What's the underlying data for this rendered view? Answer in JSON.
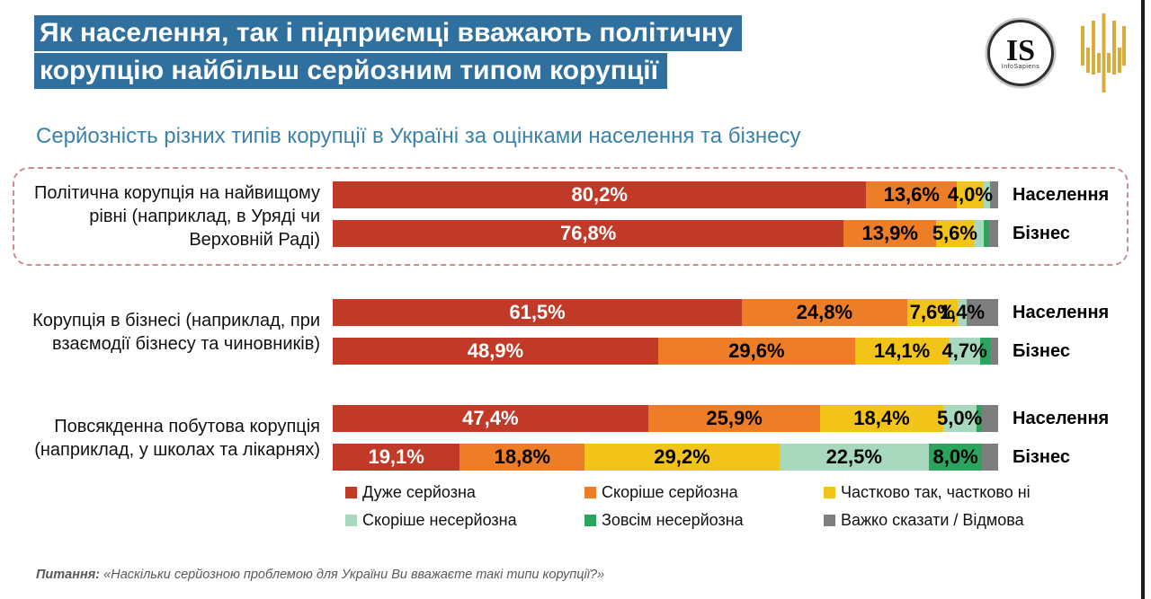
{
  "header": {
    "title_lines": [
      "Як населення, так і підприємці вважають політичну",
      "корупцію найбільш серйозним типом корупції"
    ],
    "accent_color": "#2F709E",
    "logo_is": {
      "text": "IS",
      "subtext": "InfoSapiens"
    }
  },
  "footer": {
    "prefix": "Питання:",
    "text": "«Наскільки серйозною проблемою для України Ви вважаєте такі типи корупції?»"
  },
  "chart_data": {
    "type": "bar",
    "stacked": true,
    "orientation": "horizontal",
    "unit": "%",
    "title": "Серйозність різних типів корупції в Україні за оцінками населення та бізнесу",
    "xlim": [
      0,
      100
    ],
    "legend_position": "bottom",
    "legend": [
      {
        "key": "very-serious",
        "label": "Дуже серйозна",
        "color": "#C13A27"
      },
      {
        "key": "rather-serious",
        "label": "Скоріше серйозна",
        "color": "#EE7D27"
      },
      {
        "key": "partly-yes-no",
        "label": "Частково так, частково ні",
        "color": "#F2C318"
      },
      {
        "key": "rather-not-serious",
        "label": "Скоріше несерйозна",
        "color": "#A8D8BD"
      },
      {
        "key": "not-serious-at-all",
        "label": "Зовсім несерйозна",
        "color": "#2BA45D"
      },
      {
        "key": "hard-to-say",
        "label": "Важко сказати / Відмова",
        "color": "#7E7E7E"
      }
    ],
    "groups": [
      {
        "category": "Політична корупція на найвищому рівні (наприклад, в Уряді чи Верховній Раді)",
        "highlighted": true,
        "rows": [
          {
            "respondent": "Населення",
            "segments": [
              {
                "value": 80.2,
                "label": "80,2%"
              },
              {
                "value": 13.6,
                "label": "13,6%"
              },
              {
                "value": 4.0,
                "label": "4,0%"
              },
              {
                "value": 1.0,
                "label": "",
                "estimated": true
              },
              {
                "value": 0,
                "label": ""
              },
              {
                "value": 1.2,
                "label": "",
                "estimated": true
              }
            ]
          },
          {
            "respondent": "Бізнес",
            "segments": [
              {
                "value": 76.8,
                "label": "76,8%"
              },
              {
                "value": 13.9,
                "label": "13,9%"
              },
              {
                "value": 5.6,
                "label": "5,6%"
              },
              {
                "value": 1.6,
                "label": "",
                "estimated": true
              },
              {
                "value": 0.7,
                "label": "",
                "estimated": true
              },
              {
                "value": 1.4,
                "label": "",
                "estimated": true
              }
            ]
          }
        ]
      },
      {
        "category": "Корупція в бізнесі (наприклад, при взаємодії бізнесу та чиновників)",
        "highlighted": false,
        "rows": [
          {
            "respondent": "Населення",
            "segments": [
              {
                "value": 61.5,
                "label": "61,5%"
              },
              {
                "value": 24.8,
                "label": "24,8%"
              },
              {
                "value": 7.6,
                "label": "7,6%"
              },
              {
                "value": 1.4,
                "label": "1,4%"
              },
              {
                "value": 0,
                "label": ""
              },
              {
                "value": 4.7,
                "label": "",
                "estimated": true
              }
            ]
          },
          {
            "respondent": "Бізнес",
            "segments": [
              {
                "value": 48.9,
                "label": "48,9%"
              },
              {
                "value": 29.6,
                "label": "29,6%"
              },
              {
                "value": 14.1,
                "label": "14,1%"
              },
              {
                "value": 4.7,
                "label": "4,7%"
              },
              {
                "value": 1.5,
                "label": "",
                "estimated": true
              },
              {
                "value": 1.2,
                "label": "",
                "estimated": true
              }
            ]
          }
        ]
      },
      {
        "category": "Повсякденна побутова корупція (наприклад, у школах та лікарнях)",
        "highlighted": false,
        "rows": [
          {
            "respondent": "Населення",
            "segments": [
              {
                "value": 47.4,
                "label": "47,4%"
              },
              {
                "value": 25.9,
                "label": "25,9%"
              },
              {
                "value": 18.4,
                "label": "18,4%"
              },
              {
                "value": 5.0,
                "label": "5,0%"
              },
              {
                "value": 0.9,
                "label": "",
                "estimated": true
              },
              {
                "value": 2.4,
                "label": "",
                "estimated": true
              }
            ]
          },
          {
            "respondent": "Бізнес",
            "segments": [
              {
                "value": 19.1,
                "label": "19,1%"
              },
              {
                "value": 18.8,
                "label": "18,8%"
              },
              {
                "value": 29.2,
                "label": "29,2%"
              },
              {
                "value": 22.5,
                "label": "22,5%"
              },
              {
                "value": 8.0,
                "label": "8,0%"
              },
              {
                "value": 2.4,
                "label": "",
                "estimated": true
              }
            ]
          }
        ]
      }
    ]
  }
}
